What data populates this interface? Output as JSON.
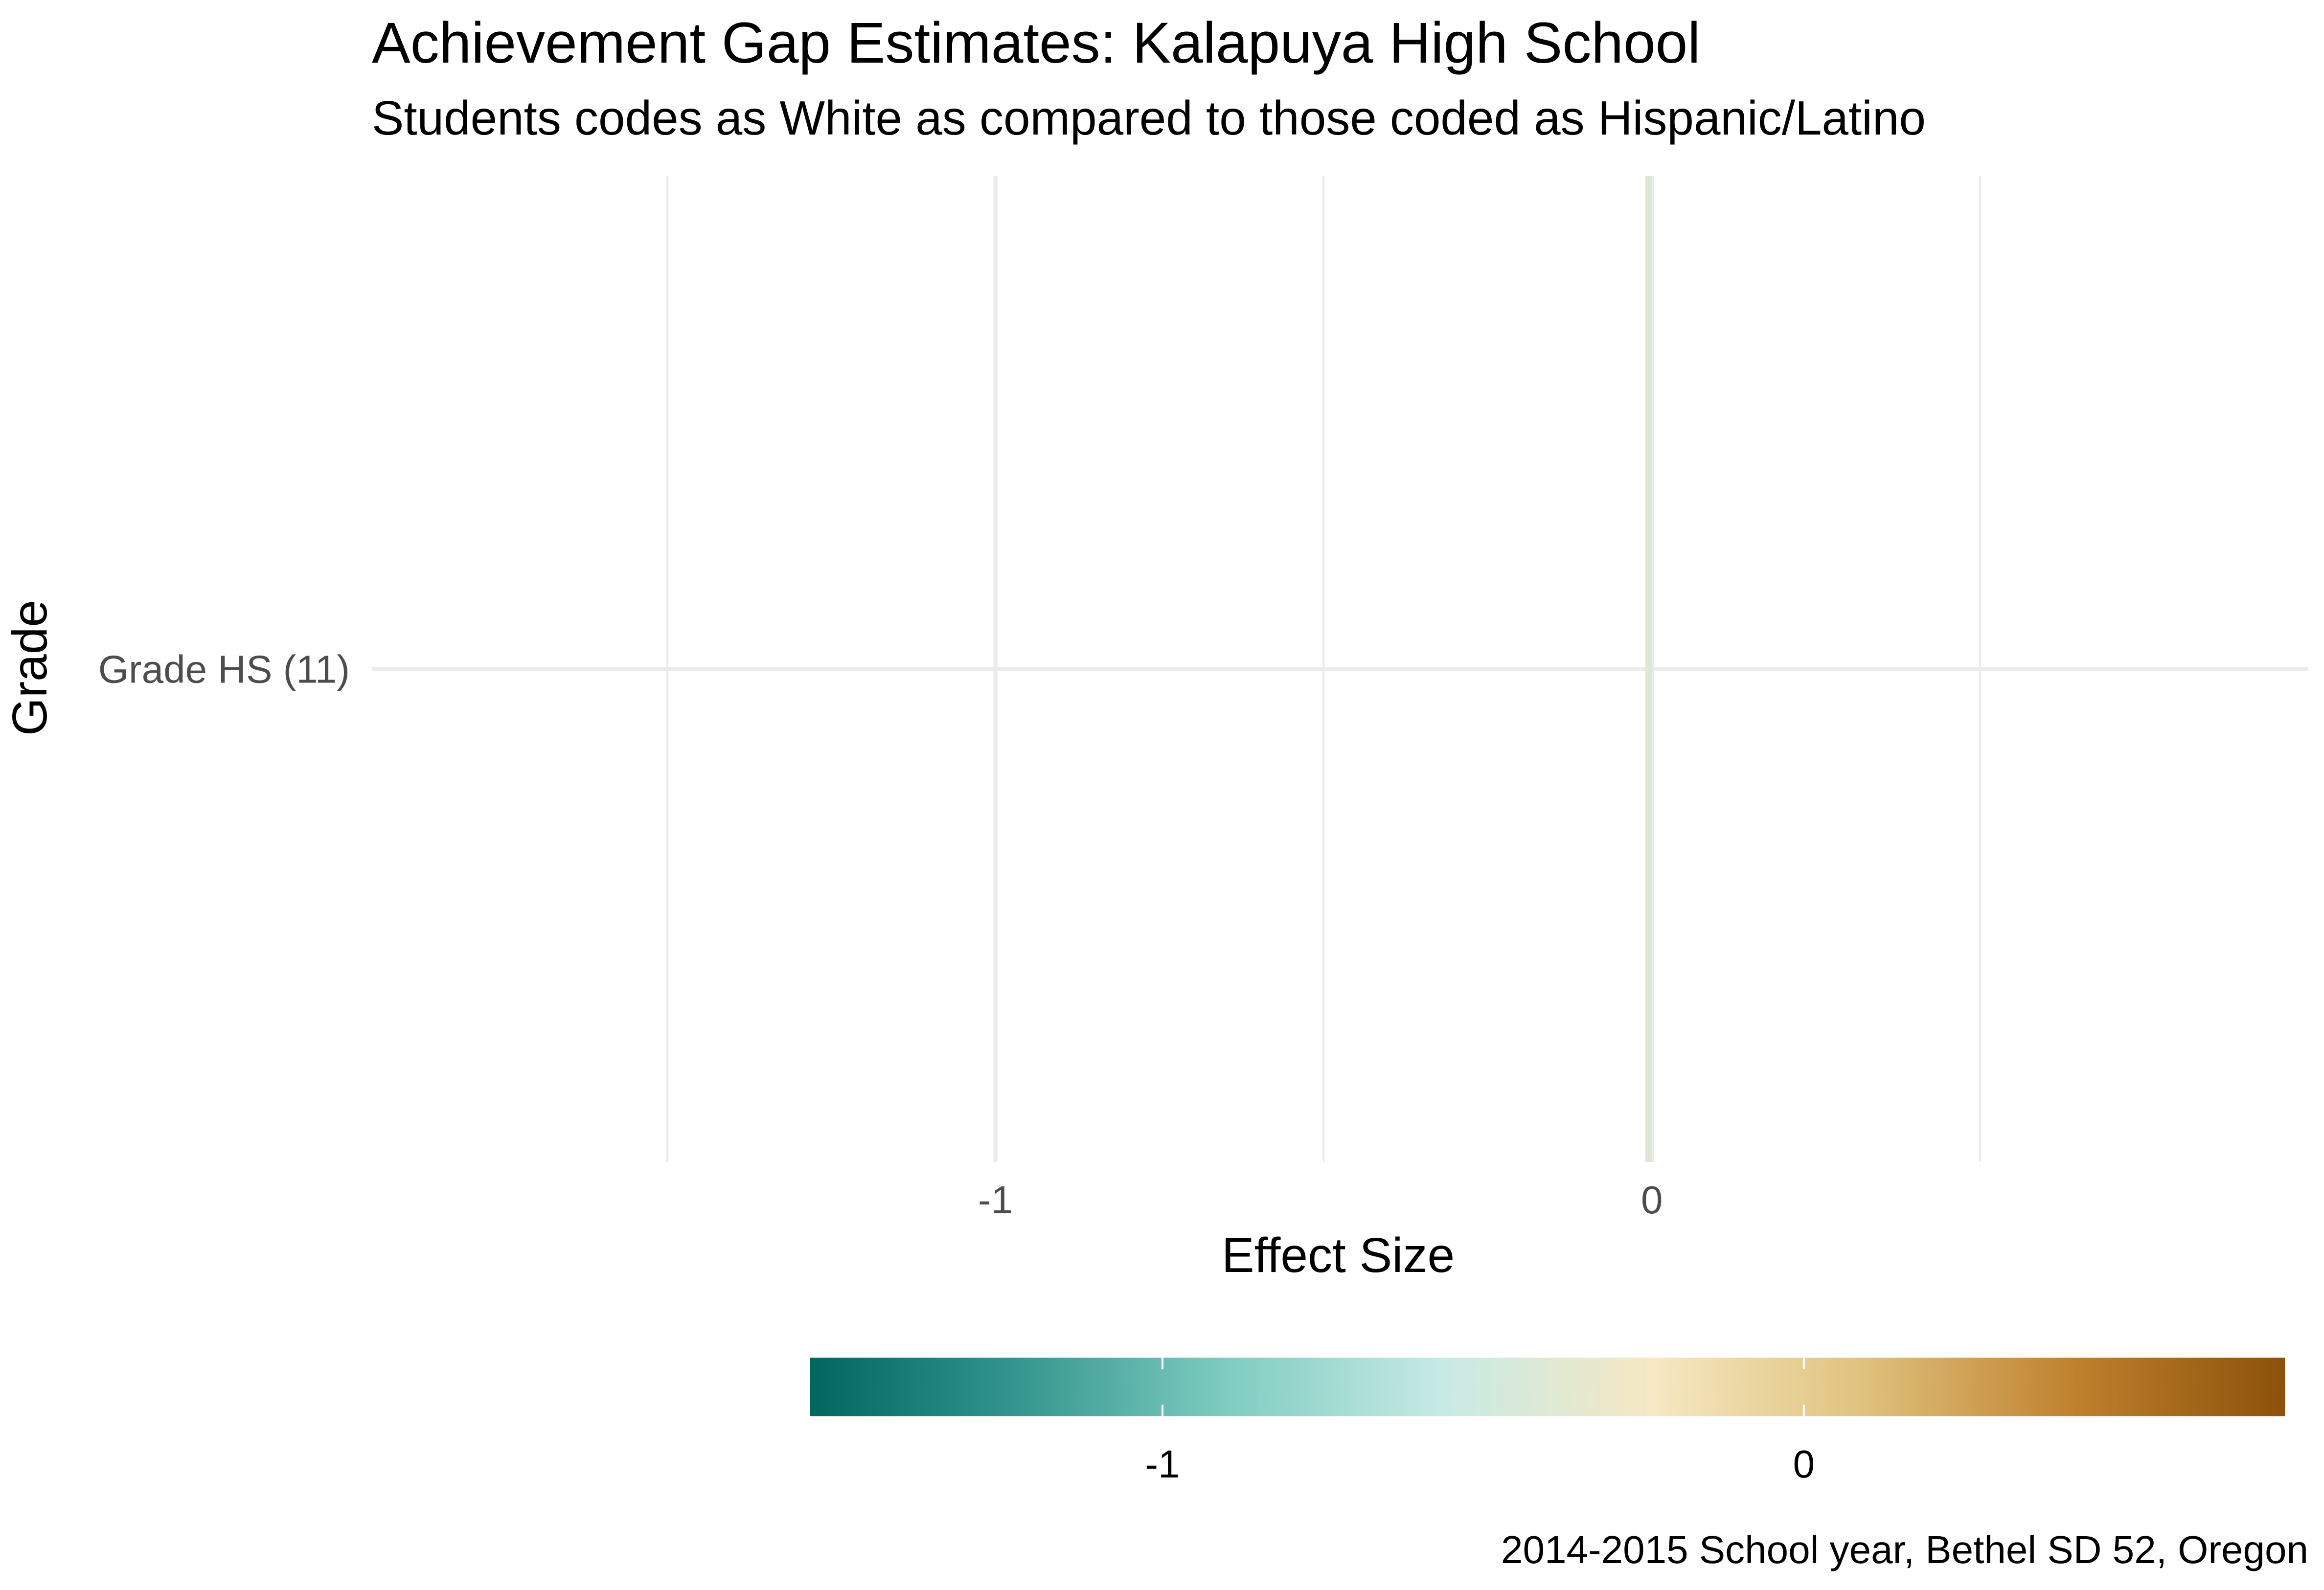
{
  "chart_data": {
    "type": "bar",
    "title": "Achievement Gap Estimates: Kalapuya High School",
    "subtitle": "Students codes as White as compared to those coded as Hispanic/Latino",
    "xlabel": "Effect Size",
    "ylabel": "Grade",
    "caption": "2014-2015 School year, Bethel SD 52, Oregon",
    "orientation": "horizontal",
    "categories": [
      "Grade HS (11)"
    ],
    "values": [
      -0.01
    ],
    "xlim": [
      -1.95,
      1.0
    ],
    "x_ticks": [
      {
        "value": -1,
        "label": "-1"
      },
      {
        "value": 0,
        "label": "0"
      }
    ],
    "x_minor_grid": [
      -1.5,
      -0.5,
      0.5
    ],
    "grid": true,
    "bar_fill": "#dfe6d6",
    "legend": {
      "position": "bottom",
      "type": "colorbar",
      "range": [
        -1.55,
        0.75
      ],
      "ticks": [
        {
          "value": -1,
          "label": "-1"
        },
        {
          "value": 0,
          "label": "0"
        }
      ],
      "colors": [
        "#01665e",
        "#35978f",
        "#80cdc1",
        "#c7eae5",
        "#f6e8c3",
        "#dfc27d",
        "#bf812d",
        "#8c510a"
      ]
    }
  }
}
